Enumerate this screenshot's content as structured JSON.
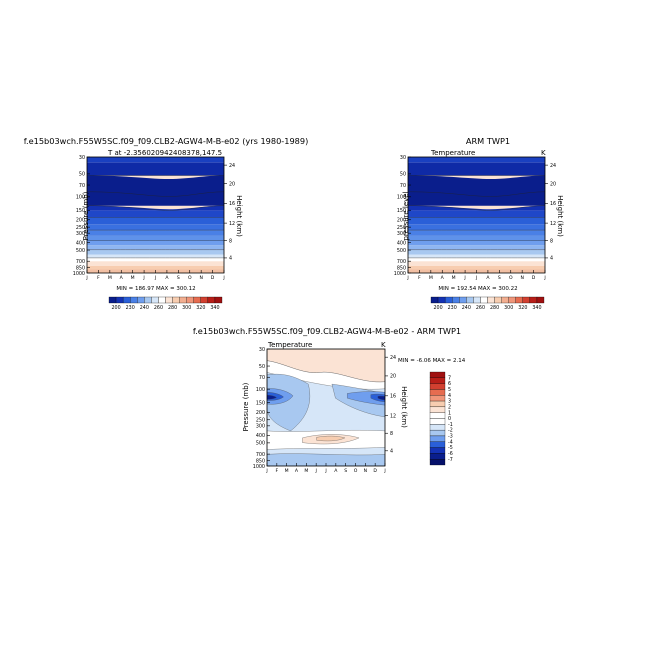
{
  "page": {
    "title_top_left": "f.e15b03wch.F55W5SC.f09_f09.CLB2-AGW4-M-B-e02 (yrs 1980-1989)",
    "title_top_right": "ARM TWP1",
    "title_bottom": "f.e15b03wch.F55W5SC.f09_f09.CLB2-AGW4-M-B-e02 - ARM TWP1"
  },
  "colors": {
    "deep_blue": "#0a1e8c",
    "mid_blue": "#2a5fd8",
    "light_blue": "#a8c8f0",
    "white": "#ffffff",
    "peach": "#f7cdb0",
    "salmon": "#f0967a",
    "dark_red": "#a01010"
  },
  "chart_data": [
    {
      "type": "heatmap",
      "panel": "model",
      "subtitle_left": "T at -2.356020942408378,147.5",
      "subtitle_right": "",
      "ylabel": "Pressure (mb)",
      "ylabel_right": "Height (km)",
      "months": [
        "J",
        "F",
        "M",
        "A",
        "M",
        "J",
        "J",
        "A",
        "S",
        "O",
        "N",
        "D",
        "J"
      ],
      "pressure_ticks": [
        "30",
        "50",
        "70",
        "100",
        "150",
        "200",
        "250",
        "300",
        "400",
        "500",
        "700",
        "850",
        "1000"
      ],
      "pressure_values": [
        30,
        50,
        70,
        100,
        150,
        200,
        250,
        300,
        400,
        500,
        700,
        850,
        1000
      ],
      "height_ticks": [
        "24",
        "20",
        "16",
        "12",
        "8",
        "4"
      ],
      "minmax_text": "MIN = 186.97  MAX = 300.12",
      "min": 186.97,
      "max": 300.12,
      "colorbar_ticks": [
        "200",
        "230",
        "240",
        "260",
        "280",
        "300",
        "320",
        "340"
      ],
      "colorbar_colors": [
        "#0a1e8c",
        "#1432b4",
        "#2a5fd8",
        "#4a80e6",
        "#6f9eee",
        "#a8c8f0",
        "#d6e6f8",
        "#ffffff",
        "#fbe3d4",
        "#f7cdb0",
        "#f2ae90",
        "#f0967a",
        "#e66c50",
        "#d24030",
        "#b81e18",
        "#a01010"
      ]
    },
    {
      "type": "heatmap",
      "panel": "obs",
      "subtitle_left": "Temperature",
      "subtitle_right": "K",
      "ylabel": "pressure level",
      "ylabel_right": "Height (km)",
      "months": [
        "J",
        "F",
        "M",
        "A",
        "M",
        "J",
        "J",
        "A",
        "S",
        "O",
        "N",
        "D",
        "J"
      ],
      "pressure_ticks": [
        "30",
        "50",
        "70",
        "100",
        "150",
        "200",
        "250",
        "300",
        "400",
        "500",
        "700",
        "850",
        "1000"
      ],
      "pressure_values": [
        30,
        50,
        70,
        100,
        150,
        200,
        250,
        300,
        400,
        500,
        700,
        850,
        1000
      ],
      "height_ticks": [
        "24",
        "20",
        "16",
        "12",
        "8",
        "4"
      ],
      "minmax_text": "MIN = 192.54  MAX = 300.22",
      "min": 192.54,
      "max": 300.22,
      "colorbar_ticks": [
        "200",
        "230",
        "240",
        "260",
        "280",
        "300",
        "320",
        "340"
      ],
      "colorbar_colors": [
        "#0a1e8c",
        "#1432b4",
        "#2a5fd8",
        "#4a80e6",
        "#6f9eee",
        "#a8c8f0",
        "#d6e6f8",
        "#ffffff",
        "#fbe3d4",
        "#f7cdb0",
        "#f2ae90",
        "#f0967a",
        "#e66c50",
        "#d24030",
        "#b81e18",
        "#a01010"
      ]
    },
    {
      "type": "heatmap",
      "panel": "difference",
      "subtitle_left": "Temperature",
      "subtitle_right": "K",
      "ylabel": "Pressure (mb)",
      "ylabel_right": "Height (km)",
      "months": [
        "J",
        "F",
        "M",
        "A",
        "M",
        "J",
        "J",
        "A",
        "S",
        "O",
        "N",
        "D",
        "J"
      ],
      "pressure_ticks": [
        "30",
        "50",
        "70",
        "100",
        "150",
        "200",
        "250",
        "300",
        "400",
        "500",
        "700",
        "850",
        "1000"
      ],
      "pressure_values": [
        30,
        50,
        70,
        100,
        150,
        200,
        250,
        300,
        400,
        500,
        700,
        850,
        1000
      ],
      "height_ticks": [
        "24",
        "20",
        "16",
        "12",
        "8",
        "4"
      ],
      "minmax_text": "MIN = -6.06  MAX =   2.14",
      "min": -6.06,
      "max": 2.14,
      "colorbar_ticks": [
        "7",
        "6",
        "5",
        "4",
        "3",
        "2",
        "1",
        "0",
        "-1",
        "-2",
        "-3",
        "-4",
        "-5",
        "-6",
        "-7"
      ],
      "colorbar_colors": [
        "#a01010",
        "#b81e18",
        "#d24030",
        "#e66c50",
        "#f0967a",
        "#f7cdb0",
        "#fbe3d4",
        "#ffffff",
        "#ffffff",
        "#d6e6f8",
        "#a8c8f0",
        "#6f9eee",
        "#2a5fd8",
        "#1432b4",
        "#0a1e8c",
        "#05106a"
      ]
    }
  ]
}
